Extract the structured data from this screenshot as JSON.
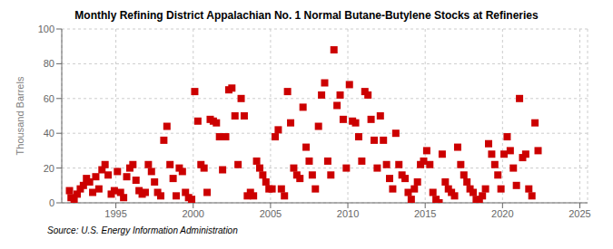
{
  "chart_data": {
    "type": "scatter",
    "title": "Monthly Refining District Appalachian No. 1 Normal Butane-Butylene Stocks at Refineries",
    "ylabel": "Thousand Barrels",
    "source": "Source: U.S. Energy Information Administration",
    "x": [
      1992.0,
      1992.1,
      1992.3,
      1992.5,
      1992.7,
      1992.9,
      1993.1,
      1993.3,
      1993.5,
      1993.7,
      1993.9,
      1994.1,
      1994.3,
      1994.5,
      1994.7,
      1994.9,
      1995.1,
      1995.3,
      1995.5,
      1995.7,
      1995.9,
      1996.1,
      1996.3,
      1996.5,
      1996.7,
      1996.9,
      1997.1,
      1997.3,
      1997.5,
      1997.7,
      1997.9,
      1998.1,
      1998.3,
      1998.5,
      1998.7,
      1998.9,
      1999.1,
      1999.3,
      1999.5,
      1999.7,
      1999.9,
      2000.1,
      2000.3,
      2000.5,
      2000.7,
      2000.9,
      2001.1,
      2001.3,
      2001.5,
      2001.7,
      2001.9,
      2002.1,
      2002.3,
      2002.5,
      2002.7,
      2002.9,
      2003.1,
      2003.3,
      2003.5,
      2003.7,
      2003.9,
      2004.1,
      2004.3,
      2004.5,
      2004.7,
      2004.9,
      2005.1,
      2005.3,
      2005.5,
      2005.7,
      2005.9,
      2006.1,
      2006.3,
      2006.5,
      2006.7,
      2006.9,
      2007.1,
      2007.3,
      2007.5,
      2007.7,
      2007.9,
      2008.1,
      2008.3,
      2008.5,
      2008.7,
      2008.9,
      2009.1,
      2009.3,
      2009.5,
      2009.7,
      2009.9,
      2010.1,
      2010.3,
      2010.5,
      2010.7,
      2010.9,
      2011.1,
      2011.3,
      2011.5,
      2011.7,
      2011.9,
      2012.1,
      2012.3,
      2012.5,
      2012.7,
      2012.9,
      2013.1,
      2013.3,
      2013.5,
      2013.7,
      2013.9,
      2014.1,
      2014.3,
      2014.5,
      2014.7,
      2014.9,
      2015.1,
      2015.3,
      2015.5,
      2015.7,
      2015.9,
      2016.1,
      2016.3,
      2016.5,
      2016.7,
      2016.9,
      2017.1,
      2017.3,
      2017.5,
      2017.7,
      2017.9,
      2018.1,
      2018.3,
      2018.5,
      2018.7,
      2018.9,
      2019.1,
      2019.3,
      2019.5,
      2019.7,
      2019.9,
      2020.1,
      2020.3,
      2020.5,
      2020.7,
      2020.9,
      2021.1,
      2021.3,
      2021.5,
      2021.7,
      2021.9,
      2022.1,
      2022.3
    ],
    "values": [
      7,
      3,
      2,
      5,
      8,
      10,
      14,
      12,
      6,
      15,
      8,
      19,
      22,
      16,
      5,
      7,
      18,
      6,
      3,
      15,
      20,
      22,
      13,
      7,
      5,
      6,
      22,
      18,
      12,
      6,
      4,
      36,
      44,
      22,
      14,
      4,
      20,
      18,
      6,
      3,
      2,
      64,
      47,
      22,
      20,
      6,
      48,
      47,
      46,
      38,
      19,
      38,
      65,
      66,
      50,
      22,
      60,
      50,
      4,
      6,
      4,
      24,
      20,
      16,
      12,
      8,
      8,
      38,
      42,
      8,
      4,
      64,
      46,
      20,
      16,
      14,
      55,
      32,
      24,
      16,
      8,
      44,
      62,
      69,
      24,
      16,
      88,
      56,
      62,
      48,
      20,
      68,
      47,
      46,
      38,
      24,
      64,
      62,
      48,
      36,
      20,
      50,
      36,
      22,
      14,
      8,
      40,
      22,
      16,
      14,
      6,
      2,
      8,
      12,
      22,
      24,
      30,
      22,
      6,
      2,
      0,
      28,
      12,
      8,
      6,
      4,
      32,
      22,
      16,
      12,
      8,
      6,
      2,
      0,
      4,
      8,
      34,
      28,
      22,
      16,
      8,
      28,
      38,
      30,
      20,
      10,
      60,
      26,
      28,
      8,
      4,
      46,
      30
    ],
    "xlim": [
      1991.5,
      2025.5
    ],
    "ylim": [
      0,
      100
    ],
    "xticks": [
      1995,
      2000,
      2005,
      2010,
      2015,
      2020,
      2025
    ],
    "yticks": [
      0,
      20,
      40,
      60,
      80,
      100
    ],
    "grid": true,
    "color": "#CC0000",
    "marker": "square"
  }
}
